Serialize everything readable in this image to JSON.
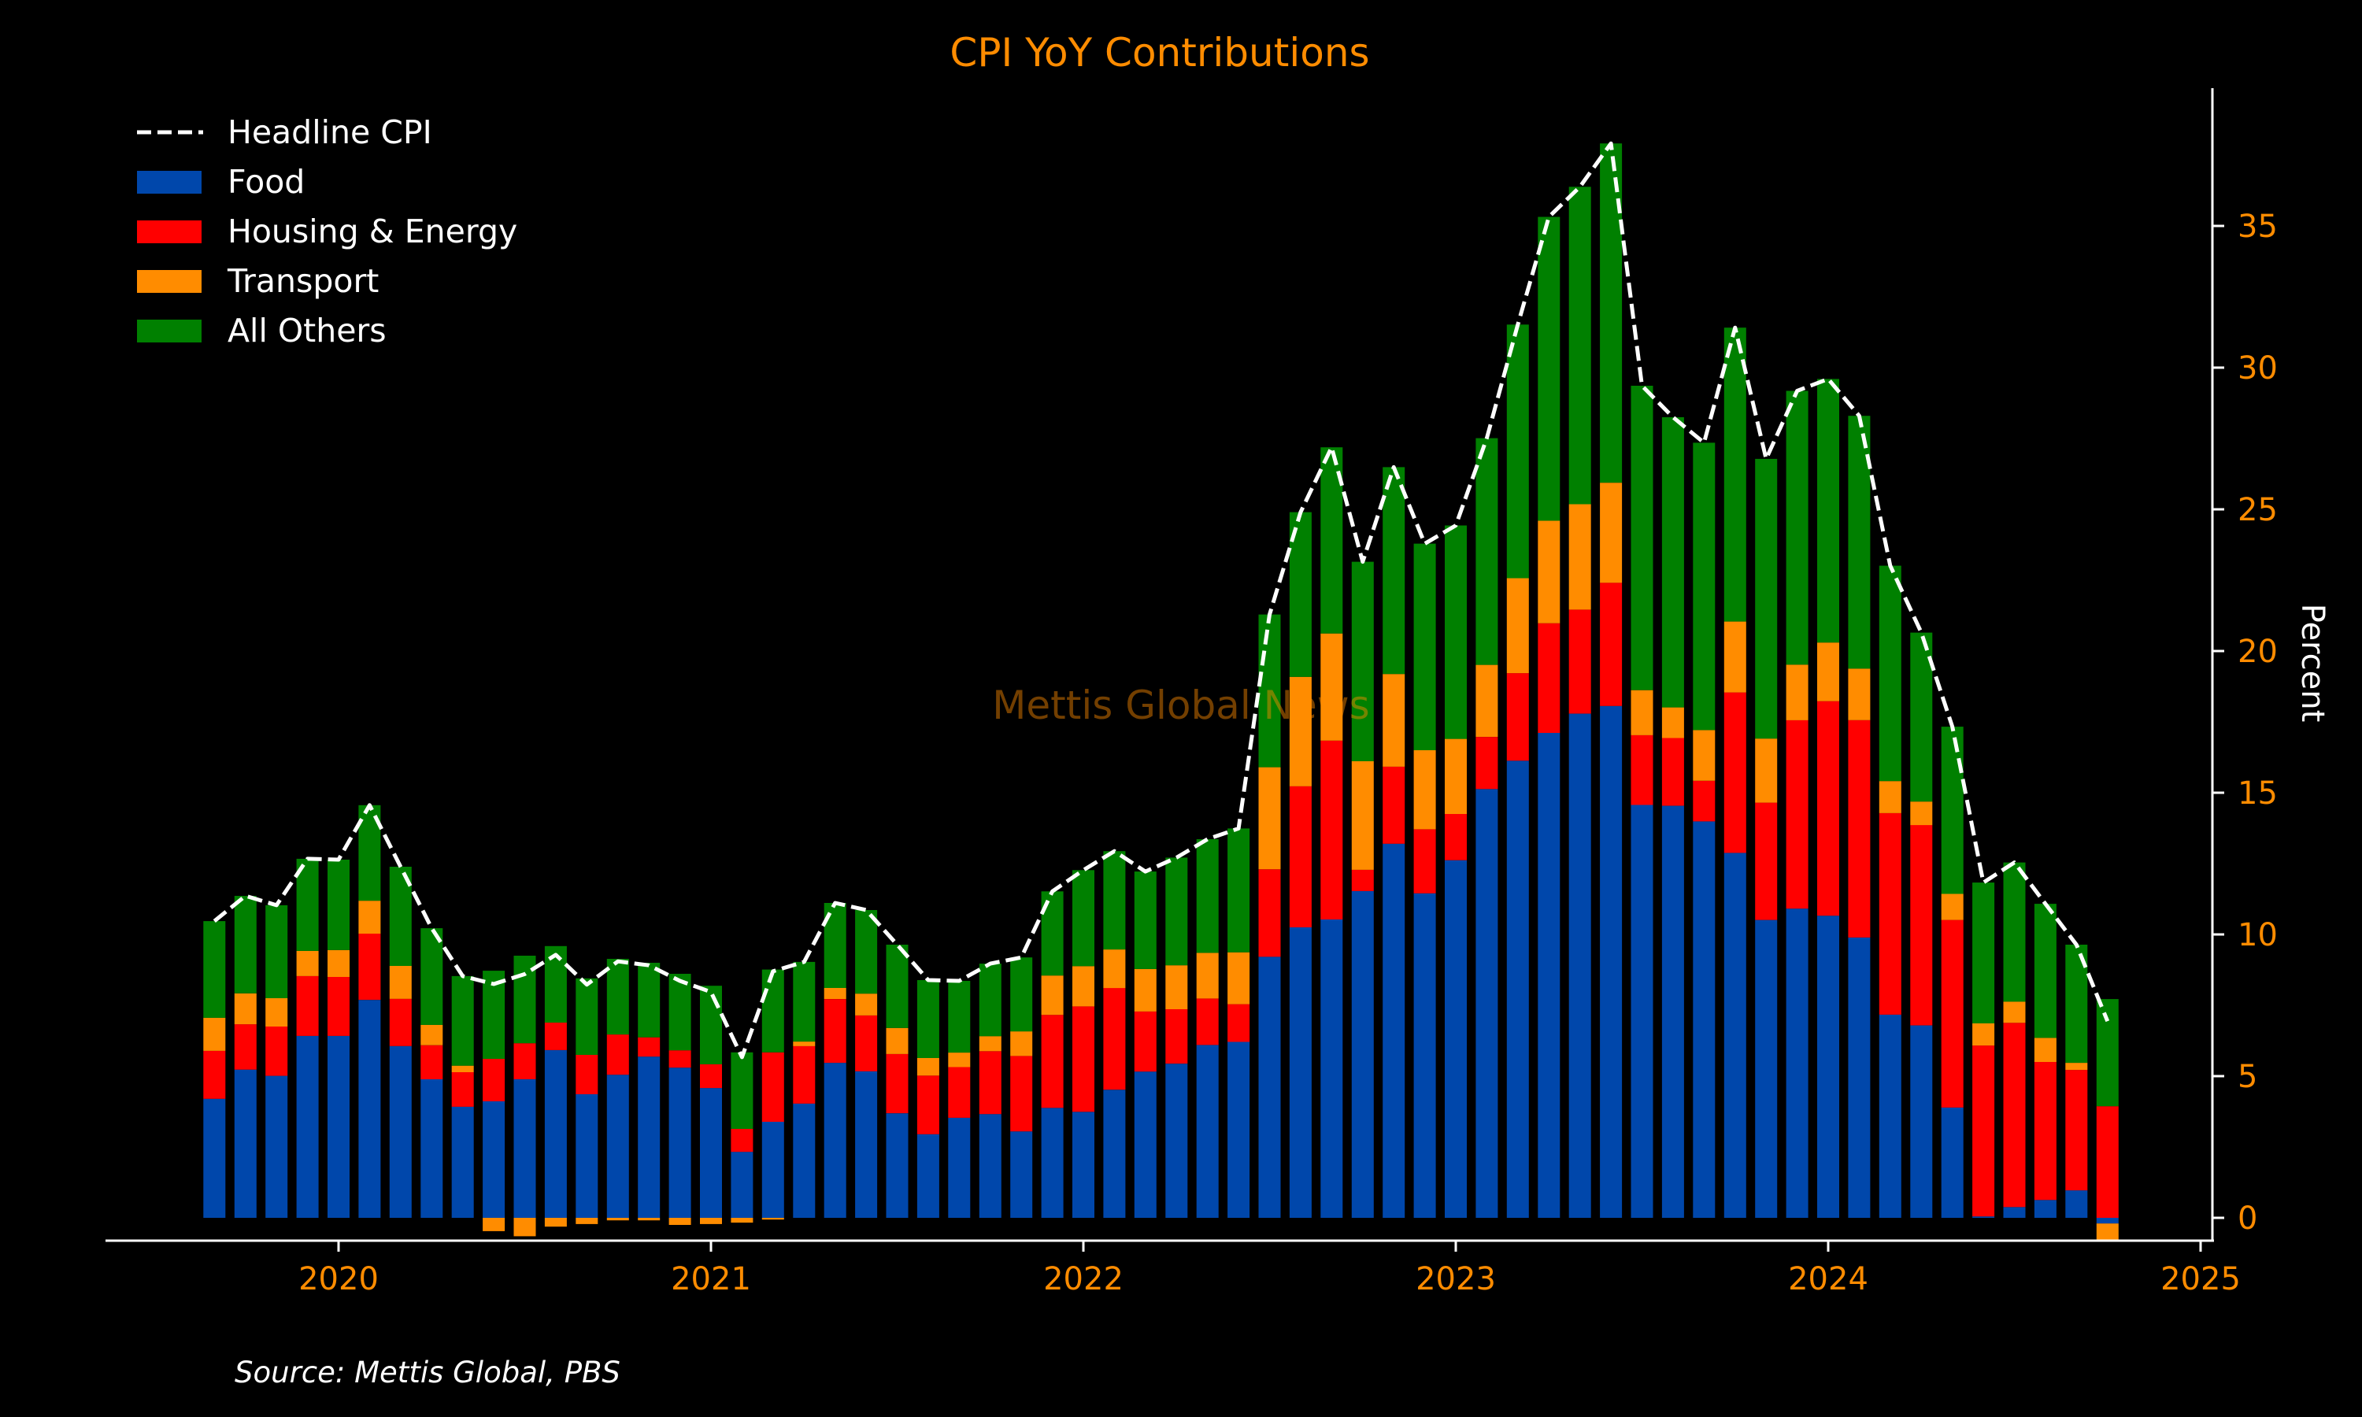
{
  "colors": {
    "background": "#000000",
    "accent": "#FF8C00",
    "axis": "#FFFFFF",
    "watermark": "#7A4100"
  },
  "chart_data": {
    "type": "bar",
    "stacked": true,
    "title": "CPI YoY Contributions",
    "xlabel": "",
    "ylabel": "Percent",
    "y_axis_side": "right",
    "ylim": [
      -0.9,
      40.6
    ],
    "yticks": [
      0,
      5,
      10,
      15,
      20,
      25,
      30,
      35
    ],
    "xticks": [
      "2020",
      "2021",
      "2022",
      "2023",
      "2024",
      "2025"
    ],
    "xlim": [
      "2019-06",
      "2025-02"
    ],
    "grid": false,
    "legend_position": "top-left",
    "source": "Source: Mettis Global, PBS",
    "watermark": "Mettis Global News",
    "categories": [
      "2019-09",
      "2019-10",
      "2019-11",
      "2019-12",
      "2020-01",
      "2020-02",
      "2020-03",
      "2020-04",
      "2020-05",
      "2020-06",
      "2020-07",
      "2020-08",
      "2020-09",
      "2020-10",
      "2020-11",
      "2020-12",
      "2021-01",
      "2021-02",
      "2021-03",
      "2021-04",
      "2021-05",
      "2021-06",
      "2021-07",
      "2021-08",
      "2021-09",
      "2021-10",
      "2021-11",
      "2021-12",
      "2022-01",
      "2022-02",
      "2022-03",
      "2022-04",
      "2022-05",
      "2022-06",
      "2022-07",
      "2022-08",
      "2022-09",
      "2022-10",
      "2022-11",
      "2022-12",
      "2023-01",
      "2023-02",
      "2023-03",
      "2023-04",
      "2023-05",
      "2023-06",
      "2023-07",
      "2023-08",
      "2023-09",
      "2023-10",
      "2023-11",
      "2023-12",
      "2024-01",
      "2024-02",
      "2024-03",
      "2024-04",
      "2024-05",
      "2024-06",
      "2024-07",
      "2024-08",
      "2024-09",
      "2024-10"
    ],
    "series": [
      {
        "name": "Food",
        "kind": "bar",
        "color": "#0047AB",
        "values": [
          4.2,
          5.23,
          5.01,
          6.42,
          6.42,
          7.69,
          6.06,
          4.89,
          3.92,
          4.11,
          4.89,
          5.92,
          4.36,
          5.05,
          5.69,
          5.3,
          4.58,
          2.33,
          3.39,
          4.03,
          5.47,
          5.17,
          3.69,
          2.95,
          3.53,
          3.66,
          3.05,
          3.88,
          3.74,
          4.52,
          5.16,
          5.44,
          6.1,
          6.21,
          9.21,
          10.25,
          10.53,
          11.53,
          13.2,
          11.45,
          12.62,
          15.13,
          16.13,
          17.11,
          17.79,
          18.06,
          14.57,
          14.54,
          13.99,
          12.88,
          10.51,
          10.91,
          10.66,
          9.89,
          7.17,
          6.79,
          3.89,
          0.05,
          0.38,
          0.63,
          0.97,
          -0.2
        ]
      },
      {
        "name": "Housing & Energy",
        "kind": "bar",
        "color": "#FF0000",
        "values": [
          1.69,
          1.6,
          1.74,
          2.11,
          2.08,
          2.34,
          1.67,
          1.2,
          1.22,
          1.5,
          1.27,
          0.97,
          1.39,
          1.42,
          0.68,
          0.61,
          0.84,
          0.81,
          2.45,
          2.03,
          2.25,
          1.97,
          2.09,
          2.07,
          1.79,
          2.22,
          2.66,
          3.28,
          3.72,
          3.59,
          2.12,
          1.92,
          1.64,
          1.33,
          3.09,
          4.98,
          6.31,
          0.75,
          2.72,
          2.26,
          1.63,
          1.84,
          3.09,
          3.87,
          3.67,
          4.35,
          2.46,
          2.39,
          1.43,
          5.66,
          4.14,
          6.65,
          7.57,
          7.67,
          7.11,
          7.07,
          6.62,
          6.03,
          6.5,
          4.87,
          4.25,
          3.94
        ]
      },
      {
        "name": "Transport",
        "kind": "bar",
        "color": "#FF8C00",
        "values": [
          1.17,
          1.09,
          1.0,
          0.89,
          0.95,
          1.16,
          1.16,
          0.72,
          0.23,
          -0.47,
          -0.65,
          -0.31,
          -0.22,
          -0.09,
          -0.09,
          -0.25,
          -0.22,
          -0.17,
          -0.06,
          0.16,
          0.39,
          0.77,
          0.92,
          0.62,
          0.51,
          0.53,
          0.87,
          1.39,
          1.42,
          1.36,
          1.5,
          1.55,
          1.61,
          1.83,
          3.6,
          3.86,
          3.78,
          3.83,
          3.27,
          2.79,
          2.65,
          2.54,
          3.35,
          3.62,
          3.72,
          3.53,
          1.59,
          1.08,
          1.79,
          2.5,
          2.26,
          1.96,
          2.07,
          1.82,
          1.13,
          0.83,
          0.92,
          0.78,
          0.75,
          0.85,
          0.25,
          -0.58
        ]
      },
      {
        "name": "All Others",
        "kind": "bar",
        "color": "#008000",
        "values": [
          3.41,
          3.44,
          3.28,
          3.25,
          3.19,
          3.37,
          3.5,
          3.41,
          3.16,
          3.11,
          3.09,
          2.7,
          2.7,
          2.67,
          2.63,
          2.7,
          2.77,
          2.7,
          2.92,
          2.81,
          3.0,
          2.95,
          2.94,
          2.75,
          2.53,
          2.56,
          2.61,
          2.97,
          3.39,
          3.47,
          3.44,
          3.8,
          4.01,
          4.37,
          5.39,
          5.81,
          6.57,
          7.04,
          7.3,
          7.29,
          7.53,
          8.0,
          8.95,
          10.72,
          11.2,
          11.97,
          10.74,
          10.24,
          10.14,
          10.37,
          9.87,
          9.66,
          9.3,
          8.92,
          7.6,
          5.96,
          5.9,
          4.97,
          4.91,
          4.73,
          4.17,
          3.78
        ]
      },
      {
        "name": "Headline CPI",
        "kind": "line",
        "style": "dashed",
        "color": "#FFFFFF",
        "values": [
          10.47,
          11.36,
          11.03,
          12.67,
          12.64,
          14.56,
          12.39,
          10.22,
          8.53,
          8.25,
          8.6,
          9.28,
          8.23,
          9.05,
          8.91,
          8.36,
          7.97,
          5.67,
          8.7,
          9.03,
          11.11,
          10.86,
          9.64,
          8.39,
          8.36,
          8.97,
          9.19,
          11.52,
          12.27,
          12.94,
          12.22,
          12.71,
          13.36,
          13.74,
          21.29,
          24.9,
          27.19,
          23.15,
          26.49,
          23.79,
          24.43,
          27.51,
          31.52,
          35.32,
          36.38,
          37.91,
          29.36,
          28.25,
          27.35,
          31.41,
          26.78,
          29.18,
          29.6,
          28.3,
          23.01,
          20.65,
          17.33,
          11.83,
          12.54,
          11.08,
          9.64,
          6.94
        ]
      }
    ],
    "legend": [
      "Headline CPI",
      "Food",
      "Housing & Energy",
      "Transport",
      "All Others"
    ]
  }
}
